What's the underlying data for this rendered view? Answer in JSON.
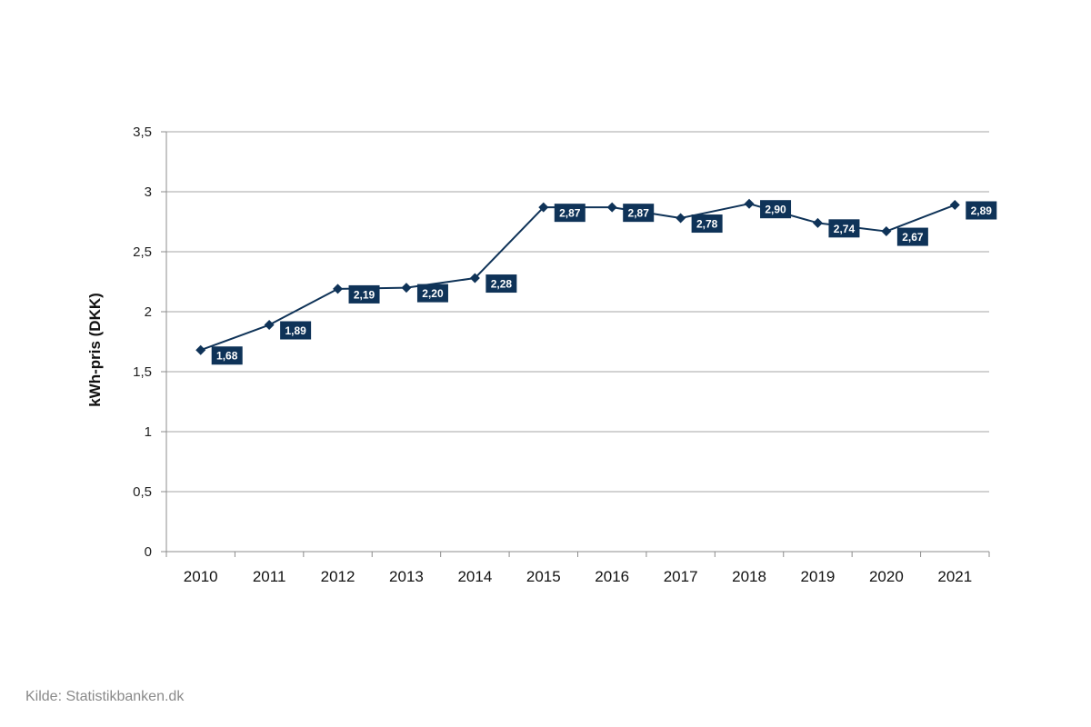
{
  "chart_data": {
    "type": "line",
    "title": "",
    "xlabel": "",
    "ylabel": "kWh-pris (DKK)",
    "categories": [
      "2010",
      "2011",
      "2012",
      "2013",
      "2014",
      "2015",
      "2016",
      "2017",
      "2018",
      "2019",
      "2020",
      "2021"
    ],
    "series": [
      {
        "values": [
          1.68,
          1.89,
          2.19,
          2.2,
          2.28,
          2.87,
          2.87,
          2.78,
          2.9,
          2.74,
          2.67,
          2.89
        ],
        "labels": [
          "1,68",
          "1,89",
          "2,19",
          "2,20",
          "2,28",
          "2,87",
          "2,87",
          "2,78",
          "2,90",
          "2,74",
          "2,67",
          "2,89"
        ],
        "color": "#0f3358",
        "marker": "diamond"
      }
    ],
    "ylim": [
      0,
      3.5
    ],
    "yticks": [
      0,
      0.5,
      1,
      1.5,
      2,
      2.5,
      3,
      3.5
    ],
    "ytick_labels": [
      "0",
      "0,5",
      "1",
      "1,5",
      "2",
      "2,5",
      "3",
      "3,5"
    ],
    "grid": "horizontal",
    "legend": "none"
  },
  "colors": {
    "series": "#0f3358",
    "label_bg": "#0f3358",
    "grid": "#a6a6a6",
    "axis": "#8c8c8c",
    "source_text": "#8a8a8a"
  },
  "footer": {
    "source": "Kilde: Statistikbanken.dk"
  }
}
